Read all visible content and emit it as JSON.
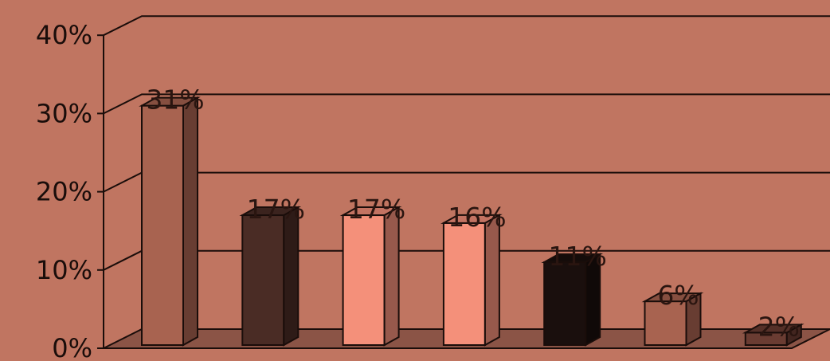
{
  "chart_data": {
    "type": "bar",
    "categories": [
      "",
      "",
      "",
      "",
      "",
      "",
      ""
    ],
    "values": [
      31,
      17,
      17,
      16,
      11,
      6,
      2
    ],
    "data_labels": [
      "31%",
      "17%",
      "17%",
      "16%",
      "11%",
      "6%",
      "2%"
    ],
    "y_ticks": [
      "0%",
      "10%",
      "20%",
      "30%",
      "40%"
    ],
    "ylim": [
      0,
      40
    ],
    "grid": true,
    "legend": "none",
    "style": "3d-column",
    "bar_colors": [
      "#a86350",
      "#4a2c25",
      "#f4907a",
      "#f4907a",
      "#1a0f0d",
      "#a86350",
      "#6a3c32"
    ],
    "background": "#c07561",
    "floor_color": "#8b5446"
  }
}
